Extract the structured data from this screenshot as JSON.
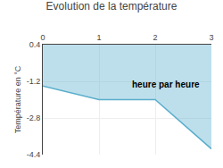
{
  "chart_data": {
    "type": "line",
    "title": "Evolution de la température",
    "ylabel": "Température en °C",
    "x": [
      0,
      1,
      2,
      3
    ],
    "values": [
      -1.4,
      -2.0,
      -2.0,
      -4.15
    ],
    "color": "#5aaecc",
    "xlim": [
      0,
      3
    ],
    "ylim": [
      -4.4,
      0.4
    ],
    "xticks": [
      0,
      1,
      2,
      3
    ],
    "yticks": [
      0.4,
      -1.2,
      -2.8,
      -4.4
    ],
    "grid": true,
    "annotations": [
      {
        "text": "heure par heure",
        "x": 1.55,
        "y": -1.05
      }
    ]
  }
}
